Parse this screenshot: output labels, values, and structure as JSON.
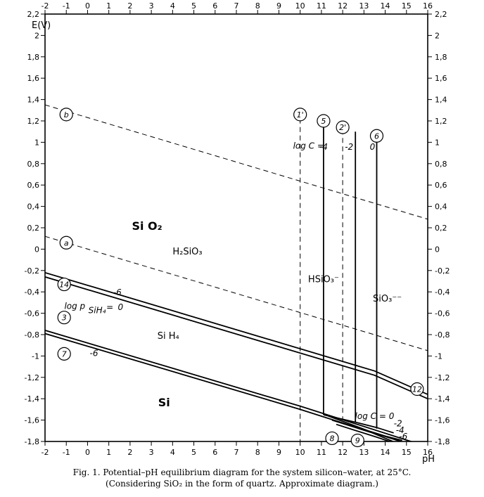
{
  "chart_data": {
    "type": "line",
    "title": "",
    "xlabel": "pH",
    "ylabel": "E(V)",
    "xlim": [
      -2,
      16
    ],
    "ylim": [
      -1.8,
      2.2
    ],
    "x_ticks": [
      -2,
      -1,
      0,
      1,
      2,
      3,
      4,
      5,
      6,
      7,
      8,
      9,
      10,
      11,
      12,
      13,
      14,
      15,
      16
    ],
    "x_tick_labels": [
      "-2",
      "-1",
      "0",
      "1",
      "2",
      "3",
      "4",
      "5",
      "6",
      "7",
      "8",
      "9",
      "10",
      "11",
      "12",
      "13",
      "14",
      "15",
      "16"
    ],
    "y_ticks": [
      2.2,
      2,
      1.8,
      1.6,
      1.4,
      1.2,
      1,
      0.8,
      0.6,
      0.4,
      0.2,
      0,
      -0.2,
      -0.4,
      -0.6,
      -0.8,
      -1,
      -1.2,
      -1.4,
      -1.6,
      -1.8
    ],
    "y_tick_labels": [
      "2,2",
      "2",
      "1,8",
      "1,6",
      "1,4",
      "1,2",
      "1",
      "0,8",
      "0,6",
      "0,4",
      "0,2",
      "0",
      "-0,2",
      "-0,4",
      "-0,6",
      "-0,8",
      "-1",
      "-1,2",
      "-1,4",
      "-1,6",
      "-1,8"
    ],
    "grid": false,
    "series": [
      {
        "style": "dashed",
        "x": [
          -2,
          16
        ],
        "y": [
          1.35,
          0.28
        ]
      },
      {
        "style": "dashed",
        "x": [
          -2,
          16
        ],
        "y": [
          0.12,
          -0.95
        ]
      },
      {
        "style": "solid",
        "x": [
          -2,
          13.5,
          16
        ],
        "y": [
          -0.22,
          -1.14,
          -1.36
        ]
      },
      {
        "style": "solid",
        "x": [
          -2,
          13.5,
          16
        ],
        "y": [
          -0.26,
          -1.18,
          -1.4
        ]
      },
      {
        "style": "solid",
        "x": [
          -2,
          10,
          16
        ],
        "y": [
          -0.76,
          -1.47,
          -1.85
        ]
      },
      {
        "style": "solid",
        "x": [
          -2,
          10,
          16
        ],
        "y": [
          -0.79,
          -1.5,
          -1.88
        ]
      },
      {
        "style": "dashed",
        "x": [
          10,
          10
        ],
        "y": [
          1.3,
          -1.85
        ]
      },
      {
        "style": "dashed",
        "x": [
          12,
          12
        ],
        "y": [
          1.12,
          -1.6
        ]
      },
      {
        "style": "solid",
        "x": [
          11.1,
          11.1
        ],
        "y": [
          1.15,
          -1.55
        ]
      },
      {
        "style": "solid",
        "x": [
          12.6,
          12.6
        ],
        "y": [
          1.1,
          -1.62
        ]
      },
      {
        "style": "solid",
        "x": [
          13.6,
          13.6
        ],
        "y": [
          1.1,
          -1.68
        ]
      },
      {
        "style": "solid",
        "x": [
          11.1,
          12.6,
          13.6,
          14.4
        ],
        "y": [
          -1.55,
          -1.62,
          -1.67,
          -1.72
        ]
      },
      {
        "style": "solid",
        "x": [
          11.5,
          13.4,
          14.0,
          14.6
        ],
        "y": [
          -1.6,
          -1.72,
          -1.77,
          -1.82
        ]
      },
      {
        "style": "solid",
        "x": [
          11.3,
          13.2,
          14.0,
          14.8
        ],
        "y": [
          -1.56,
          -1.7,
          -1.75,
          -1.79
        ]
      },
      {
        "style": "solid",
        "x": [
          11.7,
          13.6,
          14.2,
          14.9
        ],
        "y": [
          -1.64,
          -1.76,
          -1.8,
          -1.84
        ]
      }
    ],
    "region_labels": [
      {
        "text": "Si O₂",
        "x": 2.8,
        "y": 0.18
      },
      {
        "text": "H₂SiO₃",
        "x": 4.7,
        "y": -0.05
      },
      {
        "text": "HSiO₃⁻",
        "x": 11.1,
        "y": -0.31
      },
      {
        "text": "SiO₃⁻⁻",
        "x": 14.1,
        "y": -0.49
      },
      {
        "text": "Si H₄",
        "x": 3.8,
        "y": -0.84
      },
      {
        "text": "Si",
        "x": 3.6,
        "y": -1.47
      }
    ],
    "circled_labels": [
      {
        "text": "b",
        "x": -1,
        "y": 1.26
      },
      {
        "text": "a",
        "x": -1,
        "y": 0.06
      },
      {
        "text": "14",
        "x": -1.1,
        "y": -0.33
      },
      {
        "text": "3",
        "x": -1.1,
        "y": -0.64
      },
      {
        "text": "7",
        "x": -1.1,
        "y": -0.98
      },
      {
        "text": "1'",
        "x": 10,
        "y": 1.26
      },
      {
        "text": "5",
        "x": 11.1,
        "y": 1.2
      },
      {
        "text": "2'",
        "x": 12,
        "y": 1.14
      },
      {
        "text": "6",
        "x": 13.6,
        "y": 1.06
      },
      {
        "text": "12",
        "x": 15.5,
        "y": -1.31
      },
      {
        "text": "8",
        "x": 11.5,
        "y": -1.77
      },
      {
        "text": "9",
        "x": 12.7,
        "y": -1.79
      }
    ],
    "annotations": [
      {
        "text": "log C =",
        "x": 10.4,
        "y": 0.94
      },
      {
        "text": "-4",
        "x": 11.1,
        "y": 0.93
      },
      {
        "text": "-2",
        "x": 12.3,
        "y": 0.93
      },
      {
        "text": "0",
        "x": 13.4,
        "y": 0.93
      },
      {
        "text": "log p",
        "x": -0.6,
        "y": -0.56
      },
      {
        "text": "SiH₄",
        "x": 0.45,
        "y": -0.6
      },
      {
        "text": "=",
        "x": 1.05,
        "y": -0.57
      },
      {
        "text": "-6",
        "x": 1.4,
        "y": -0.43
      },
      {
        "text": "0",
        "x": 1.55,
        "y": -0.57
      },
      {
        "text": "-6",
        "x": 0.3,
        "y": -1.0
      },
      {
        "text": "log C = 0",
        "x": 13.5,
        "y": -1.59
      },
      {
        "text": "-2",
        "x": 14.6,
        "y": -1.66
      },
      {
        "text": "-4",
        "x": 14.7,
        "y": -1.72
      },
      {
        "text": "-6",
        "x": 14.85,
        "y": -1.78
      }
    ]
  },
  "caption": {
    "line1": "Fig. 1. Potential–pH equilibrium diagram for the system silicon–water, at 25°C.",
    "line2": "(Considering SiO₂ in the form of quartz. Approximate diagram.)"
  }
}
